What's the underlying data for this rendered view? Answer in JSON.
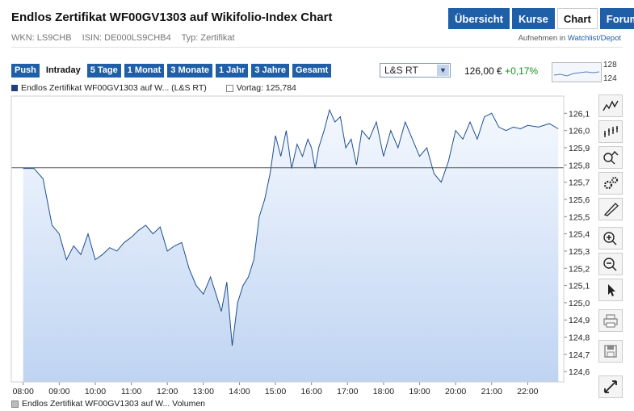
{
  "page": {
    "title": "Endlos Zertifikat WF00GV1303 auf Wikifolio-Index Chart",
    "wkn": "WKN: LS9CHB",
    "isin": "ISIN: DE000LS9CHB4",
    "type": "Typ: Zertifikat"
  },
  "nav": {
    "tabs": [
      {
        "label": "Übersicht"
      },
      {
        "label": "Kurse"
      },
      {
        "label": "Chart"
      },
      {
        "label": "Forum"
      }
    ],
    "active": "Chart",
    "watchlist_prefix": "Aufnehmen in",
    "watchlist_link": "Watchlist/Depot"
  },
  "toolbar": {
    "ranges": [
      {
        "label": "Push"
      },
      {
        "label": "Intraday"
      },
      {
        "label": "5 Tage"
      },
      {
        "label": "1 Monat"
      },
      {
        "label": "3 Monate"
      },
      {
        "label": "1 Jahr"
      },
      {
        "label": "3 Jahre"
      },
      {
        "label": "Gesamt"
      }
    ],
    "active": "Intraday",
    "exchange": "L&S RT",
    "price": "126,00 €",
    "change": "+0,17%",
    "mini_high": "128",
    "mini_low": "124"
  },
  "legend": {
    "series": "Endlos Zertifikat WF00GV1303 auf W... (L&S RT)",
    "prev_close": "Vortag: 125,784",
    "volume": "Endlos Zertifikat WF00GV1303 auf W... Volumen"
  },
  "colors": {
    "accent": "#1f5fa8",
    "line": "#1f4f8f",
    "positive": "#109618"
  },
  "icons": [
    "line-chart-icon",
    "ohlc-chart-icon",
    "search-compare-icon",
    "settings-icon",
    "draw-pen-icon",
    "zoom-in-icon",
    "zoom-out-icon",
    "pointer-icon",
    "print-icon",
    "save-icon",
    "fullscreen-icon"
  ],
  "chart_data": {
    "type": "area",
    "ylim": [
      124.54,
      126.2
    ],
    "xlim": [
      7.67,
      23.0
    ],
    "y_ticks": [
      "126,1",
      "126,0",
      "125,9",
      "125,8",
      "125,7",
      "125,6",
      "125,5",
      "125,4",
      "125,3",
      "125,2",
      "125,1",
      "125,0",
      "124,9",
      "124,8",
      "124,7",
      "124,6"
    ],
    "x_ticks": [
      {
        "t": 8.0,
        "label": "08:00"
      },
      {
        "t": 9.0,
        "label": "09:00"
      },
      {
        "t": 10.0,
        "label": "10:00"
      },
      {
        "t": 11.0,
        "label": "11:00"
      },
      {
        "t": 12.0,
        "label": "12:00"
      },
      {
        "t": 13.0,
        "label": "13:00"
      },
      {
        "t": 14.0,
        "label": "14:00"
      },
      {
        "t": 15.0,
        "label": "15:00"
      },
      {
        "t": 16.0,
        "label": "16:00"
      },
      {
        "t": 17.0,
        "label": "17:00"
      },
      {
        "t": 18.0,
        "label": "18:00"
      },
      {
        "t": 19.0,
        "label": "19:00"
      },
      {
        "t": 20.0,
        "label": "20:00"
      },
      {
        "t": 21.0,
        "label": "21:00"
      },
      {
        "t": 22.0,
        "label": "22:00"
      }
    ],
    "prev_close": 125.784,
    "x": [
      8.0,
      8.3,
      8.55,
      8.8,
      9.0,
      9.2,
      9.4,
      9.6,
      9.8,
      10.0,
      10.2,
      10.4,
      10.6,
      10.8,
      11.0,
      11.2,
      11.4,
      11.6,
      11.8,
      12.0,
      12.2,
      12.4,
      12.6,
      12.8,
      13.0,
      13.2,
      13.35,
      13.5,
      13.65,
      13.8,
      13.95,
      14.1,
      14.25,
      14.4,
      14.55,
      14.7,
      14.85,
      15.0,
      15.15,
      15.3,
      15.45,
      15.6,
      15.75,
      15.9,
      16.0,
      16.1,
      16.2,
      16.35,
      16.5,
      16.65,
      16.8,
      16.95,
      17.1,
      17.25,
      17.4,
      17.6,
      17.8,
      18.0,
      18.2,
      18.4,
      18.6,
      18.8,
      19.0,
      19.2,
      19.4,
      19.6,
      19.8,
      20.0,
      20.2,
      20.4,
      20.6,
      20.8,
      21.0,
      21.2,
      21.4,
      21.6,
      21.8,
      22.0,
      22.3,
      22.6,
      22.85
    ],
    "y": [
      125.78,
      125.78,
      125.72,
      125.45,
      125.4,
      125.25,
      125.33,
      125.28,
      125.4,
      125.25,
      125.28,
      125.32,
      125.3,
      125.35,
      125.38,
      125.42,
      125.45,
      125.4,
      125.44,
      125.3,
      125.33,
      125.35,
      125.2,
      125.1,
      125.05,
      125.15,
      125.05,
      124.95,
      125.12,
      124.75,
      125.0,
      125.1,
      125.15,
      125.25,
      125.5,
      125.6,
      125.75,
      125.97,
      125.85,
      126.0,
      125.78,
      125.92,
      125.85,
      125.95,
      125.9,
      125.78,
      125.9,
      126.0,
      126.12,
      126.05,
      126.08,
      125.9,
      125.95,
      125.8,
      126.0,
      125.95,
      126.05,
      125.85,
      126.0,
      125.9,
      126.05,
      125.95,
      125.85,
      125.9,
      125.75,
      125.7,
      125.82,
      126.0,
      125.95,
      126.05,
      125.95,
      126.08,
      126.1,
      126.02,
      126.0,
      126.02,
      126.01,
      126.03,
      126.02,
      126.04,
      126.01
    ]
  }
}
